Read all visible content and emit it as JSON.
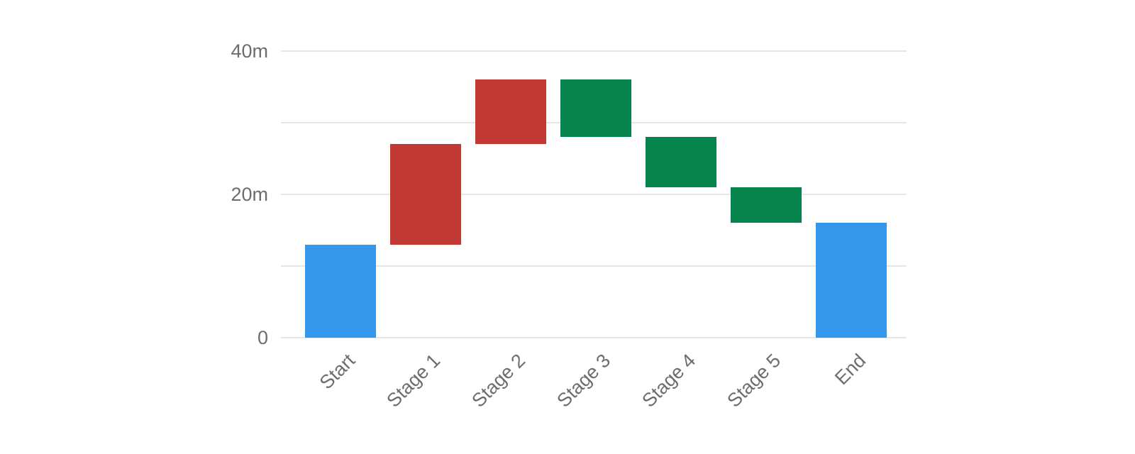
{
  "chart_data": {
    "type": "bar",
    "subtype": "waterfall",
    "title": "",
    "legend": false,
    "grid": true,
    "categories": [
      "Start",
      "Stage 1",
      "Stage 2",
      "Stage 3",
      "Stage 4",
      "Stage 5",
      "End"
    ],
    "bars": [
      {
        "category": "Start",
        "from": 0,
        "to": 13,
        "delta": 13,
        "role": "total"
      },
      {
        "category": "Stage 1",
        "from": 13,
        "to": 27,
        "delta": 14,
        "role": "increase"
      },
      {
        "category": "Stage 2",
        "from": 27,
        "to": 36,
        "delta": 9,
        "role": "increase"
      },
      {
        "category": "Stage 3",
        "from": 36,
        "to": 28,
        "delta": -8,
        "role": "decrease"
      },
      {
        "category": "Stage 4",
        "from": 28,
        "to": 21,
        "delta": -7,
        "role": "decrease"
      },
      {
        "category": "Stage 5",
        "from": 21,
        "to": 16,
        "delta": -5,
        "role": "decrease"
      },
      {
        "category": "End",
        "from": 0,
        "to": 16,
        "delta": 16,
        "role": "total"
      }
    ],
    "y_axis": {
      "min": 0,
      "max": 40,
      "unit": "m",
      "gridlines": [
        0,
        10,
        20,
        30,
        40
      ],
      "labeled_ticks": [
        {
          "value": 40,
          "label": "40m"
        },
        {
          "value": 20,
          "label": "20m"
        },
        {
          "value": 0,
          "label": "0"
        }
      ]
    },
    "colors": {
      "total": "#3398EC",
      "increase": "#C23934",
      "decrease": "#04844B",
      "gridline": "#E7E6E4",
      "axis_text": "#6F6D6A",
      "background": "#FFFFFF"
    }
  }
}
